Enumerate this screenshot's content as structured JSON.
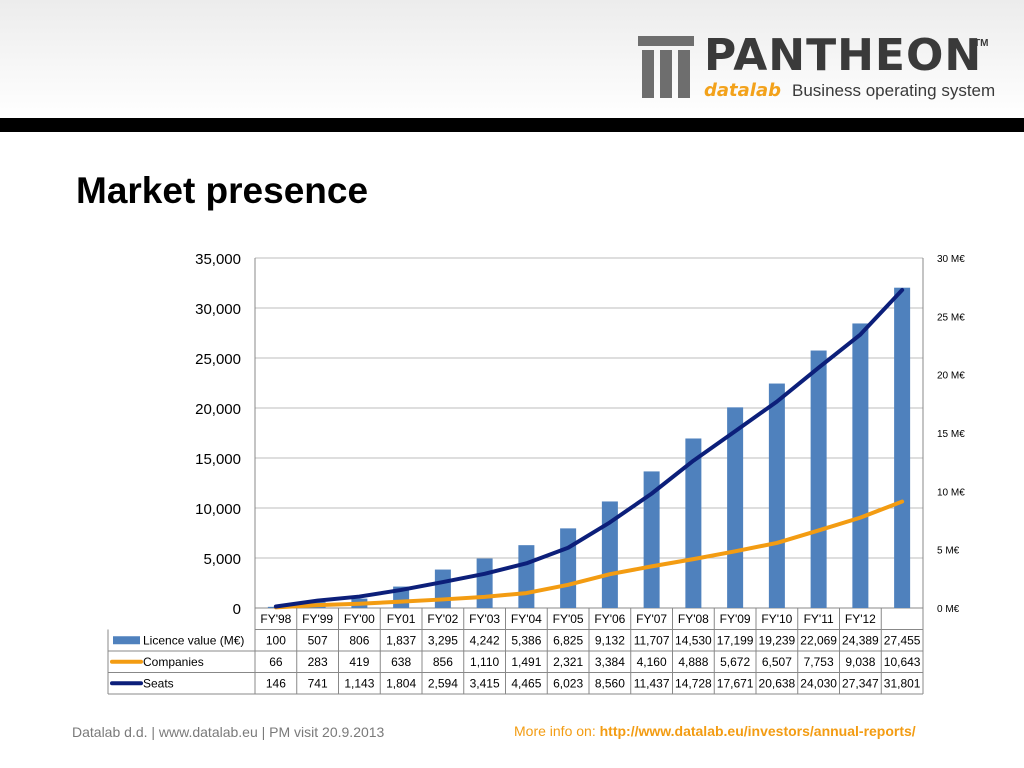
{
  "header": {
    "logo_word": "PANTHEON",
    "logo_tm": "TM",
    "logo_brand": "datalab",
    "logo_tagline": "Business operating system"
  },
  "title": "Market presence",
  "chart_data": {
    "type": "bar",
    "categories": [
      "FY'98",
      "FY'99",
      "FY'00",
      "FY01",
      "FY'02",
      "FY'03",
      "FY'04",
      "FY'05",
      "FY'06",
      "FY'07",
      "FY'08",
      "FY'09",
      "FY'10",
      "FY'11",
      "FY'12",
      ""
    ],
    "y_left": {
      "ylim": [
        0,
        35000
      ],
      "ticks": [
        "35,000",
        "30,000",
        "25,000",
        "20,000",
        "15,000",
        "10,000",
        "5,000",
        "0"
      ]
    },
    "y_right": {
      "ylim": [
        0,
        30
      ],
      "ticks": [
        "30 M€",
        "25 M€",
        "20 M€",
        "15 M€",
        "10 M€",
        "5 M€",
        "0 M€"
      ]
    },
    "grid": true,
    "series": [
      {
        "name": "Licence value (M€)",
        "kind": "bar",
        "axis": "right",
        "color": "#4f81bd",
        "values": [
          100,
          507,
          806,
          1837,
          3295,
          4242,
          5386,
          6825,
          9132,
          11707,
          14530,
          17199,
          19239,
          22069,
          24389,
          27455
        ],
        "labels": [
          "100",
          "507",
          "806",
          "1,837",
          "3,295",
          "4,242",
          "5,386",
          "6,825",
          "9,132",
          "11,707",
          "14,530",
          "17,199",
          "19,239",
          "22,069",
          "24,389",
          "27,455"
        ]
      },
      {
        "name": "Companies",
        "kind": "line",
        "axis": "left",
        "color": "#f39c12",
        "values": [
          66,
          283,
          419,
          638,
          856,
          1110,
          1491,
          2321,
          3384,
          4160,
          4888,
          5672,
          6507,
          7753,
          9038,
          10643
        ],
        "labels": [
          "66",
          "283",
          "419",
          "638",
          "856",
          "1,110",
          "1,491",
          "2,321",
          "3,384",
          "4,160",
          "4,888",
          "5,672",
          "6,507",
          "7,753",
          "9,038",
          "10,643"
        ]
      },
      {
        "name": "Seats",
        "kind": "line",
        "axis": "left",
        "color": "#0c1f7a",
        "values": [
          146,
          741,
          1143,
          1804,
          2594,
          3415,
          4465,
          6023,
          8560,
          11437,
          14728,
          17671,
          20638,
          24030,
          27347,
          31801
        ],
        "labels": [
          "146",
          "741",
          "1,143",
          "1,804",
          "2,594",
          "3,415",
          "4,465",
          "6,023",
          "8,560",
          "11,437",
          "14,728",
          "17,671",
          "20,638",
          "24,030",
          "27,347",
          "31,801"
        ]
      }
    ]
  },
  "footer": {
    "left": "Datalab d.d.   |  www.datalab.eu  |   PM visit  20.9.2013",
    "right_prefix": "More info on: ",
    "right_link": "http://www.datalab.eu/investors/annual-reports/"
  }
}
